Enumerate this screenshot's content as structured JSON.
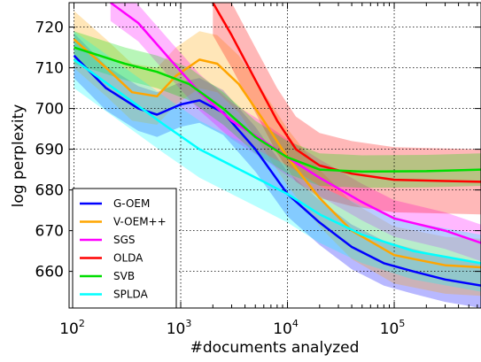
{
  "chart_data": {
    "type": "line",
    "xlabel": "#documents analyzed",
    "ylabel": "log perplexity",
    "x_scale": "log",
    "xlim": [
      90,
      650000
    ],
    "ylim": [
      651,
      726
    ],
    "x_ticks": [
      {
        "value": 100,
        "base": "10",
        "exp": "2"
      },
      {
        "value": 1000,
        "base": "10",
        "exp": "3"
      },
      {
        "value": 10000,
        "base": "10",
        "exp": "4"
      },
      {
        "value": 100000,
        "base": "10",
        "exp": "5"
      }
    ],
    "y_ticks": [
      "660",
      "670",
      "680",
      "690",
      "700",
      "710",
      "720"
    ],
    "grid": true,
    "legend_position": "bottom-left",
    "series": [
      {
        "name": "G-OEM",
        "color": "#0000ff",
        "band_width": 11,
        "points": [
          [
            100,
            713
          ],
          [
            200,
            705
          ],
          [
            400,
            700
          ],
          [
            600,
            698.5
          ],
          [
            1000,
            701
          ],
          [
            1500,
            702
          ],
          [
            2500,
            699
          ],
          [
            5000,
            690
          ],
          [
            10000,
            679
          ],
          [
            20000,
            672
          ],
          [
            40000,
            666
          ],
          [
            80000,
            662
          ],
          [
            150000,
            660
          ],
          [
            300000,
            658
          ],
          [
            650000,
            656.5
          ]
        ]
      },
      {
        "name": "V-OEM++",
        "color": "#ffa500",
        "band_width": 14,
        "points": [
          [
            100,
            717
          ],
          [
            200,
            710
          ],
          [
            350,
            704
          ],
          [
            600,
            703
          ],
          [
            900,
            708
          ],
          [
            1500,
            712
          ],
          [
            2200,
            711
          ],
          [
            3500,
            706
          ],
          [
            6000,
            697
          ],
          [
            10000,
            688
          ],
          [
            20000,
            678
          ],
          [
            40000,
            670
          ],
          [
            100000,
            664
          ],
          [
            300000,
            661.5
          ],
          [
            650000,
            661
          ]
        ]
      },
      {
        "name": "SGS",
        "color": "#ff00ff",
        "band_width": 9,
        "points": [
          [
            220,
            726
          ],
          [
            400,
            721
          ],
          [
            800,
            712
          ],
          [
            1500,
            704
          ],
          [
            3000,
            697
          ],
          [
            6000,
            692
          ],
          [
            10000,
            688
          ],
          [
            20000,
            683
          ],
          [
            50000,
            677
          ],
          [
            100000,
            673
          ],
          [
            300000,
            670
          ],
          [
            650000,
            667
          ]
        ]
      },
      {
        "name": "OLDA",
        "color": "#ff0000",
        "band_width": 16,
        "points": [
          [
            2000,
            726
          ],
          [
            3000,
            718
          ],
          [
            5000,
            707
          ],
          [
            8000,
            697
          ],
          [
            12000,
            690
          ],
          [
            20000,
            686
          ],
          [
            40000,
            684
          ],
          [
            100000,
            682.5
          ],
          [
            300000,
            682.2
          ],
          [
            650000,
            682
          ]
        ]
      },
      {
        "name": "SVB",
        "color": "#00dd00",
        "band_width": 8,
        "points": [
          [
            100,
            715
          ],
          [
            300,
            711
          ],
          [
            600,
            709
          ],
          [
            1200,
            706
          ],
          [
            2500,
            700
          ],
          [
            5000,
            693
          ],
          [
            10000,
            688
          ],
          [
            20000,
            685
          ],
          [
            50000,
            684.5
          ],
          [
            200000,
            684.6
          ],
          [
            650000,
            685
          ]
        ]
      },
      {
        "name": "SPLDA",
        "color": "#00ffff",
        "band_width": 14,
        "points": [
          [
            100,
            712
          ],
          [
            300,
            703
          ],
          [
            700,
            696
          ],
          [
            1500,
            690
          ],
          [
            3000,
            686
          ],
          [
            6000,
            682
          ],
          [
            10000,
            679
          ],
          [
            20000,
            674
          ],
          [
            50000,
            669
          ],
          [
            150000,
            665
          ],
          [
            650000,
            662
          ]
        ]
      }
    ]
  }
}
